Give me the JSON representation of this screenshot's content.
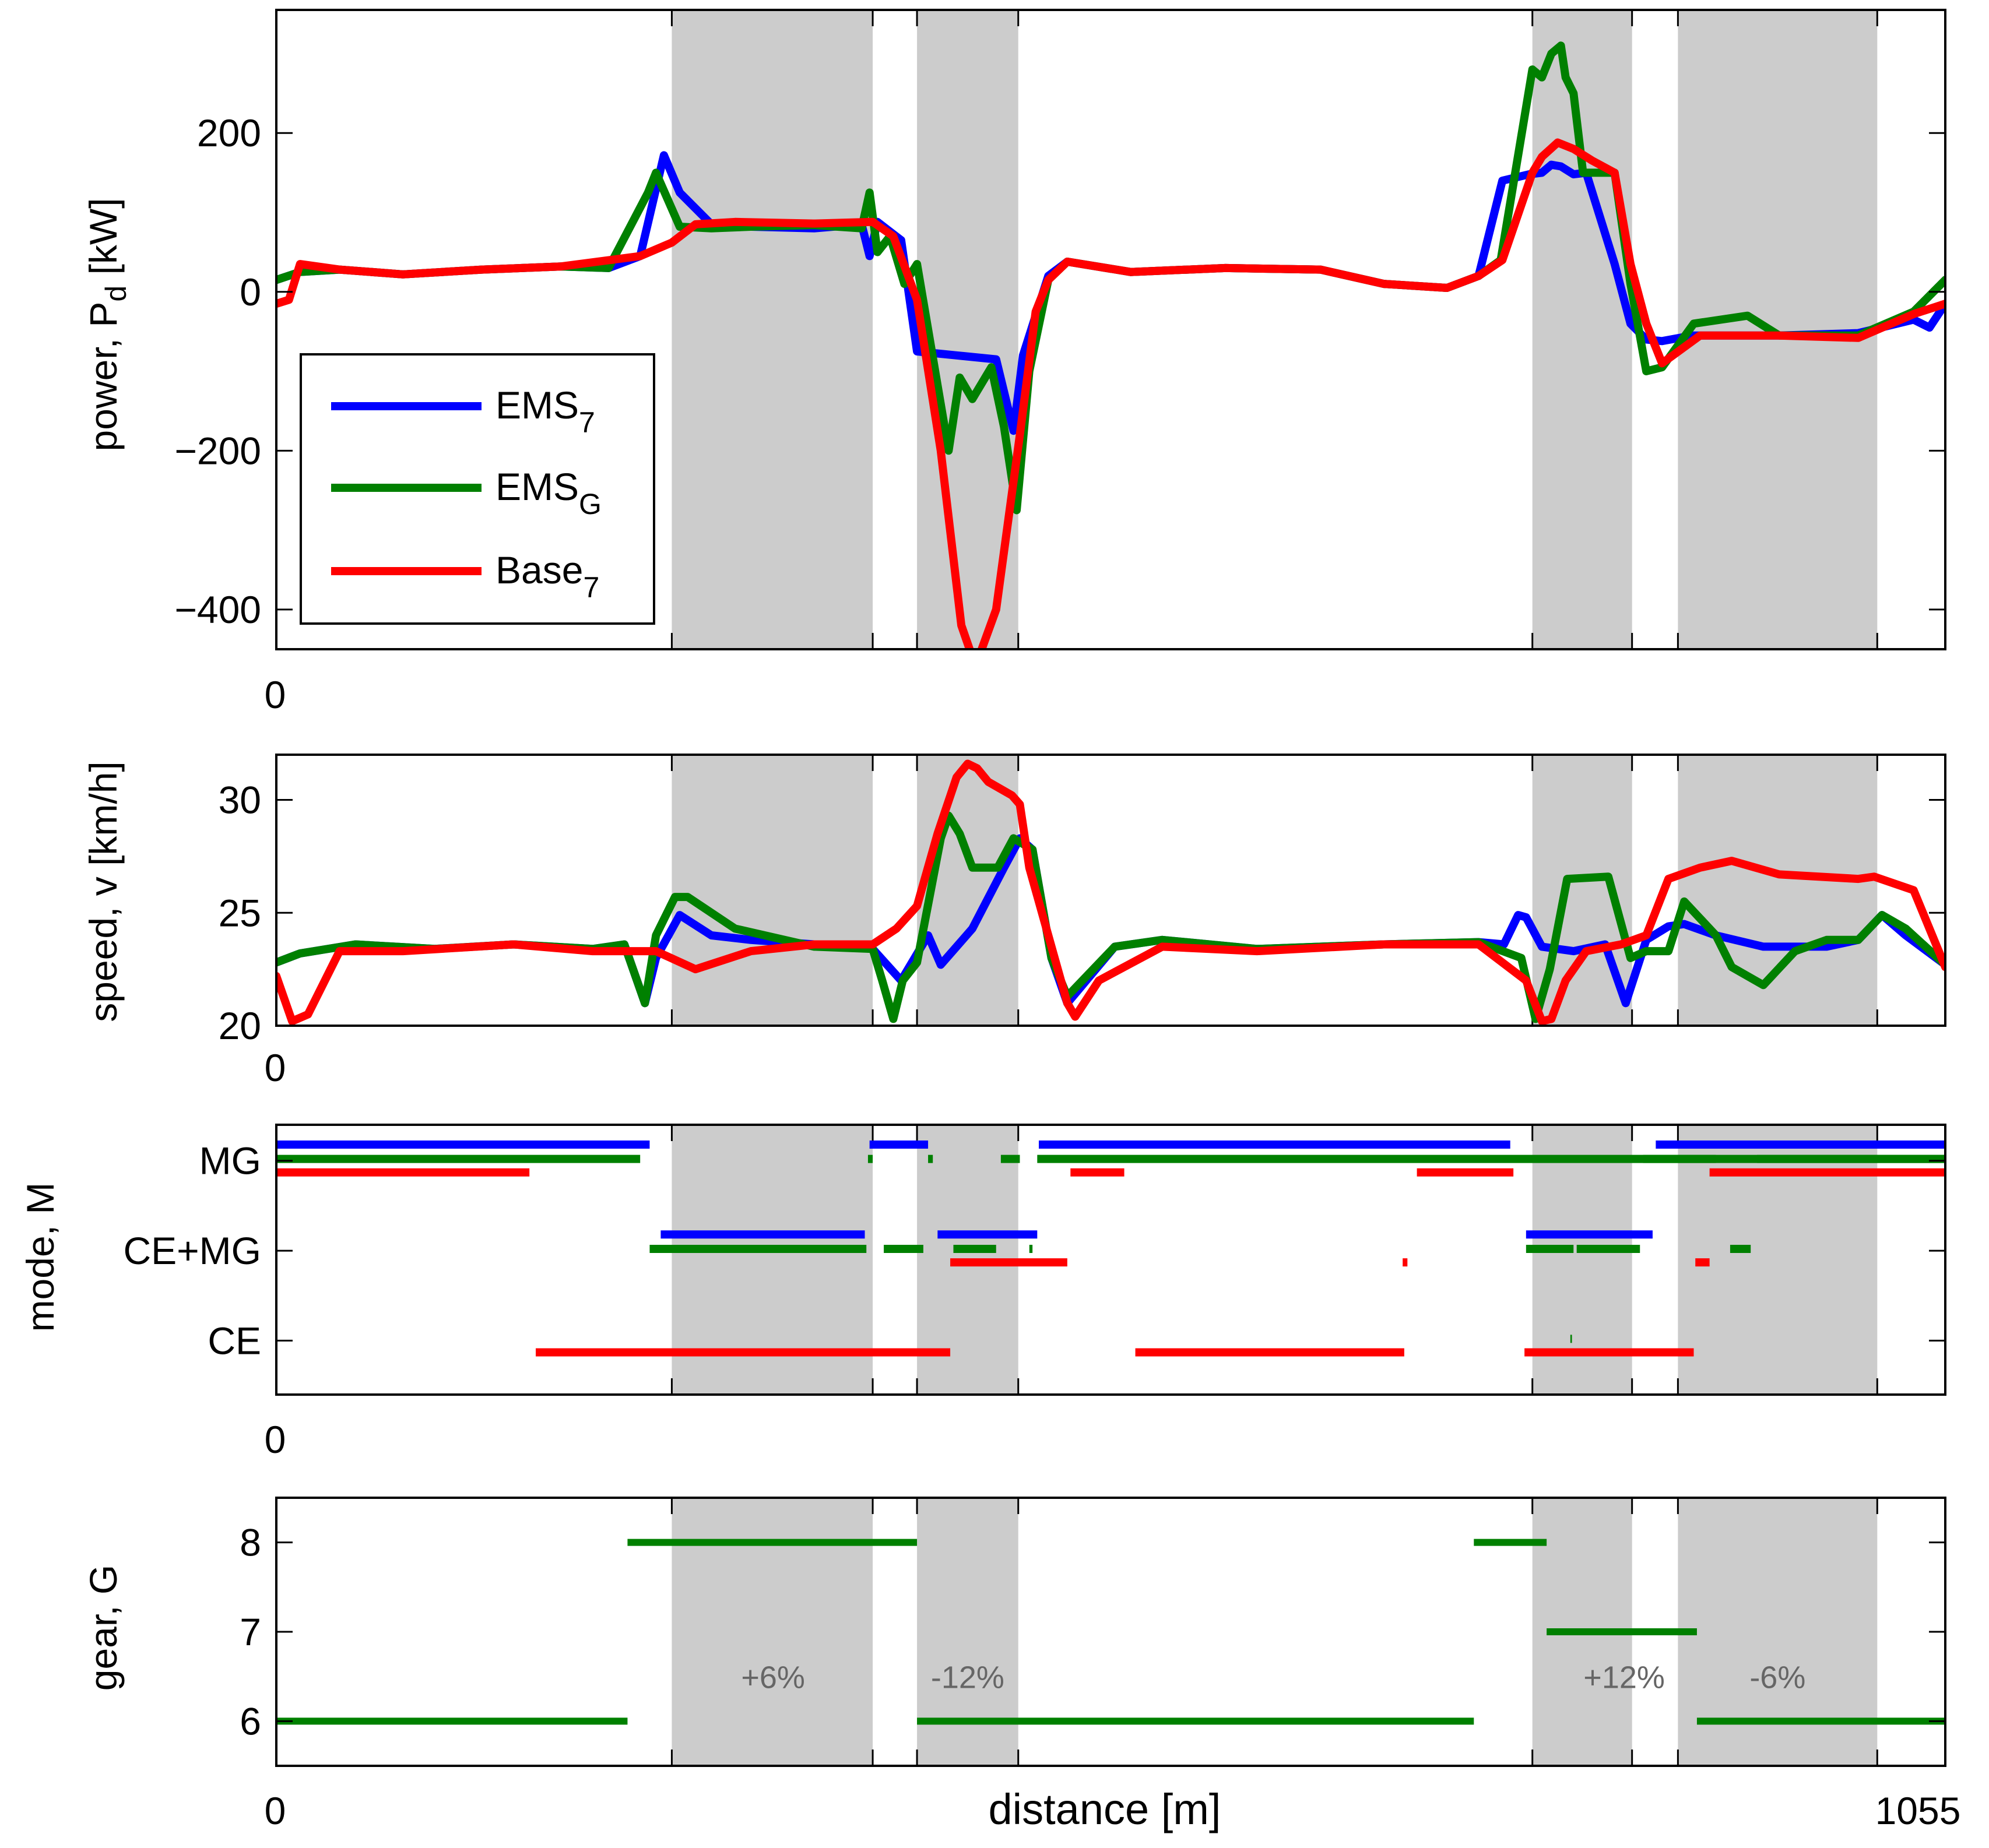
{
  "figure": {
    "xlabel": "distance [m]",
    "x_end_label": "1055"
  },
  "colors": {
    "ems7": "#0000ff",
    "emsg": "#008000",
    "base7": "#ff0000",
    "shade": "#cccccc",
    "axis": "#000000",
    "grade_text": "#666666"
  },
  "chart_data": [
    {
      "type": "line",
      "title": "",
      "ylabel": "power, P",
      "ylabel_sub": "d",
      "ylabel_unit": " [kW]",
      "xlim": [
        0,
        1055
      ],
      "ylim": [
        -450,
        355
      ],
      "yticks": [
        200,
        0,
        -200,
        -400
      ],
      "ytick_labels": [
        "200",
        "0",
        "−200",
        "−400"
      ],
      "x_zero_label": "0",
      "shaded_regions": [
        [
          250,
          377
        ],
        [
          405,
          469
        ],
        [
          794,
          857
        ],
        [
          886,
          1012
        ]
      ],
      "legend": {
        "position": "bottom-left",
        "entries": [
          {
            "base": "EMS",
            "sub": "7",
            "color": "#0000ff"
          },
          {
            "base": "EMS",
            "sub": "G",
            "color": "#008000"
          },
          {
            "base": "Base",
            "sub": "7",
            "color": "#ff0000"
          }
        ]
      },
      "series": [
        {
          "name": "EMS7",
          "color": "#0000ff",
          "x": [
            0,
            15,
            40,
            80,
            130,
            180,
            210,
            230,
            245,
            255,
            275,
            300,
            340,
            370,
            375,
            380,
            395,
            405,
            430,
            455,
            466,
            472,
            488,
            500,
            540,
            600,
            660,
            700,
            740,
            760,
            775,
            792,
            800,
            806,
            812,
            820,
            828,
            846,
            856,
            866,
            876,
            895,
            950,
            1000,
            1035,
            1045,
            1055
          ],
          "y": [
            15,
            25,
            28,
            22,
            28,
            32,
            30,
            45,
            172,
            125,
            85,
            82,
            80,
            85,
            45,
            88,
            65,
            -75,
            -80,
            -85,
            -175,
            -80,
            20,
            38,
            25,
            30,
            28,
            10,
            5,
            20,
            140,
            148,
            150,
            160,
            158,
            148,
            150,
            35,
            -40,
            -60,
            -62,
            -55,
            -55,
            -52,
            -35,
            -45,
            -15
          ]
        },
        {
          "name": "EMSG",
          "color": "#008000",
          "x": [
            0,
            15,
            40,
            80,
            130,
            180,
            210,
            235,
            240,
            255,
            275,
            300,
            340,
            370,
            375,
            380,
            388,
            397,
            405,
            425,
            432,
            440,
            452,
            460,
            468,
            476,
            488,
            500,
            540,
            600,
            660,
            700,
            740,
            760,
            774,
            794,
            800,
            806,
            812,
            815,
            820,
            826,
            846,
            856,
            866,
            876,
            896,
            930,
            950,
            980,
            1000,
            1035,
            1055
          ],
          "y": [
            15,
            25,
            28,
            22,
            28,
            32,
            30,
            125,
            150,
            82,
            80,
            82,
            84,
            80,
            125,
            50,
            70,
            10,
            35,
            -200,
            -108,
            -135,
            -95,
            -170,
            -275,
            -100,
            15,
            38,
            25,
            30,
            28,
            10,
            5,
            20,
            40,
            280,
            270,
            300,
            310,
            270,
            250,
            150,
            150,
            10,
            -100,
            -95,
            -40,
            -30,
            -55,
            -55,
            -55,
            -25,
            15
          ]
        },
        {
          "name": "Base7",
          "color": "#ff0000",
          "x": [
            0,
            8,
            15,
            40,
            80,
            130,
            180,
            230,
            250,
            265,
            290,
            340,
            377,
            390,
            405,
            420,
            433,
            440,
            445,
            455,
            470,
            480,
            488,
            500,
            540,
            600,
            660,
            700,
            740,
            760,
            775,
            794,
            800,
            810,
            820,
            832,
            846,
            856,
            866,
            876,
            900,
            950,
            1000,
            1035,
            1055
          ],
          "y": [
            -15,
            -10,
            35,
            28,
            22,
            28,
            32,
            45,
            62,
            85,
            88,
            86,
            88,
            70,
            -10,
            -200,
            -420,
            -460,
            -455,
            -400,
            -180,
            -25,
            15,
            38,
            25,
            30,
            28,
            10,
            5,
            20,
            40,
            150,
            170,
            188,
            180,
            165,
            150,
            35,
            -40,
            -90,
            -55,
            -55,
            -58,
            -28,
            -15
          ]
        }
      ]
    },
    {
      "type": "line",
      "title": "",
      "ylabel": "speed, v [km/h]",
      "xlim": [
        0,
        1055
      ],
      "ylim": [
        20,
        32
      ],
      "yticks": [
        30,
        25,
        20
      ],
      "ytick_labels": [
        "30",
        "25",
        "20"
      ],
      "x_zero_label": "0",
      "shaded_regions": [
        [
          250,
          377
        ],
        [
          405,
          469
        ],
        [
          794,
          857
        ],
        [
          886,
          1012
        ]
      ],
      "series": [
        {
          "name": "EMS7",
          "color": "#0000ff",
          "x": [
            0,
            15,
            50,
            100,
            150,
            200,
            220,
            233,
            240,
            255,
            275,
            300,
            340,
            377,
            395,
            412,
            420,
            440,
            460,
            470,
            478,
            490,
            500,
            530,
            560,
            620,
            700,
            760,
            776,
            785,
            790,
            800,
            820,
            840,
            853,
            866,
            880,
            890,
            910,
            940,
            980,
            1000,
            1015,
            1030,
            1055
          ],
          "y": [
            22.8,
            23.2,
            23.6,
            23.4,
            23.6,
            23.4,
            23.6,
            21.0,
            23.0,
            24.9,
            24.0,
            23.8,
            23.6,
            23.4,
            22.0,
            24.0,
            22.7,
            24.3,
            27.0,
            28.3,
            27.8,
            23.0,
            21.0,
            23.5,
            23.8,
            23.4,
            23.6,
            23.7,
            23.6,
            24.9,
            24.8,
            23.5,
            23.3,
            23.6,
            21.0,
            23.8,
            24.4,
            24.5,
            24.0,
            23.5,
            23.5,
            23.8,
            24.9,
            24.0,
            22.7
          ]
        },
        {
          "name": "EMSG",
          "color": "#008000",
          "x": [
            0,
            15,
            50,
            100,
            150,
            200,
            220,
            233,
            240,
            252,
            260,
            290,
            340,
            377,
            383,
            390,
            396,
            405,
            420,
            425,
            432,
            440,
            448,
            456,
            466,
            478,
            490,
            500,
            530,
            560,
            620,
            700,
            760,
            787,
            796,
            805,
            816,
            842,
            856,
            866,
            880,
            890,
            910,
            920,
            940,
            960,
            980,
            1000,
            1015,
            1030,
            1055
          ],
          "y": [
            22.8,
            23.2,
            23.6,
            23.4,
            23.6,
            23.4,
            23.6,
            21.0,
            24.0,
            25.7,
            25.7,
            24.3,
            23.5,
            23.4,
            22.0,
            20.3,
            22.0,
            22.8,
            28.3,
            29.3,
            28.5,
            27.0,
            27.0,
            27.0,
            28.3,
            27.8,
            23.0,
            21.3,
            23.5,
            23.8,
            23.4,
            23.6,
            23.7,
            23.0,
            20.3,
            22.5,
            26.5,
            26.6,
            23.0,
            23.3,
            23.3,
            25.5,
            24.0,
            22.6,
            21.8,
            23.3,
            23.8,
            23.8,
            24.9,
            24.3,
            22.7
          ]
        },
        {
          "name": "Base7",
          "color": "#ff0000",
          "x": [
            0,
            10,
            20,
            40,
            80,
            150,
            200,
            240,
            265,
            300,
            340,
            377,
            392,
            405,
            418,
            430,
            437,
            443,
            450,
            465,
            470,
            476,
            500,
            505,
            520,
            560,
            620,
            700,
            760,
            790,
            800,
            806,
            815,
            828,
            850,
            866,
            880,
            900,
            920,
            930,
            950,
            1000,
            1010,
            1035,
            1055
          ],
          "y": [
            22.2,
            20.2,
            20.5,
            23.3,
            23.3,
            23.6,
            23.3,
            23.3,
            22.5,
            23.3,
            23.6,
            23.6,
            24.3,
            25.3,
            28.5,
            31.0,
            31.6,
            31.4,
            30.8,
            30.2,
            29.8,
            27.0,
            21.0,
            20.4,
            22.0,
            23.5,
            23.3,
            23.6,
            23.6,
            22.0,
            20.2,
            20.3,
            22.0,
            23.3,
            23.6,
            24.0,
            26.5,
            27.0,
            27.3,
            27.1,
            26.7,
            26.5,
            26.6,
            26.0,
            22.6
          ]
        }
      ]
    },
    {
      "type": "line",
      "title": "",
      "ylabel": "mode, M",
      "xlim": [
        0,
        1055
      ],
      "ylim": [
        0.4,
        3.4
      ],
      "yticks": [
        3,
        2,
        1
      ],
      "ytick_labels": [
        "MG",
        "CE+MG",
        "CE"
      ],
      "x_zero_label": "0",
      "shaded_regions": [
        [
          250,
          377
        ],
        [
          405,
          469
        ],
        [
          794,
          857
        ],
        [
          886,
          1012
        ]
      ],
      "series": [
        {
          "name": "EMS7",
          "color": "#0000ff",
          "y_offset": 0.18,
          "segments": [
            [
              0,
              236,
              3
            ],
            [
              375,
              412,
              3
            ],
            [
              482,
              780,
              3
            ],
            [
              872,
              1055,
              3
            ],
            [
              243,
              372,
              2
            ],
            [
              418,
              481,
              2
            ],
            [
              790,
              870,
              2
            ]
          ]
        },
        {
          "name": "EMSG",
          "color": "#008000",
          "y_offset": 0.02,
          "segments": [
            [
              0,
              230,
              3
            ],
            [
              374,
              377,
              3
            ],
            [
              412,
              415,
              3
            ],
            [
              458,
              470,
              3
            ],
            [
              481,
              1055,
              3
            ],
            [
              864,
              910,
              3
            ],
            [
              936,
              1055,
              3
            ],
            [
              236,
              373,
              2
            ],
            [
              384,
              409,
              2
            ],
            [
              428,
              455,
              2
            ],
            [
              476,
              478,
              2
            ],
            [
              790,
              820,
              2
            ],
            [
              822,
              862,
              2
            ],
            [
              919,
              932,
              2
            ],
            [
              818,
              819,
              1
            ]
          ]
        },
        {
          "name": "Base7",
          "color": "#ff0000",
          "y_offset": -0.13,
          "segments": [
            [
              0,
              160,
              3
            ],
            [
              502,
              536,
              3
            ],
            [
              721,
              782,
              3
            ],
            [
              906,
              1055,
              3
            ],
            [
              426,
              500,
              2
            ],
            [
              712,
              715,
              2
            ],
            [
              897,
              906,
              2
            ],
            [
              164,
              426,
              1
            ],
            [
              543,
              713,
              1
            ],
            [
              789,
              896,
              1
            ]
          ]
        }
      ]
    },
    {
      "type": "line",
      "title": "",
      "ylabel": "gear, G",
      "xlim": [
        0,
        1055
      ],
      "ylim": [
        5.5,
        8.5
      ],
      "yticks": [
        8,
        7,
        6
      ],
      "ytick_labels": [
        "8",
        "7",
        "6"
      ],
      "x_zero_label": "0",
      "shaded_regions": [
        [
          250,
          377
        ],
        [
          405,
          469
        ],
        [
          794,
          857
        ],
        [
          886,
          1012
        ]
      ],
      "annotations": [
        {
          "text": "+6%",
          "x": 314,
          "y": 6.5
        },
        {
          "text": "-12%",
          "x": 437,
          "y": 6.5
        },
        {
          "text": "+12%",
          "x": 852,
          "y": 6.5
        },
        {
          "text": "-6%",
          "x": 949,
          "y": 6.5
        }
      ],
      "series": [
        {
          "name": "EMSG",
          "color": "#008000",
          "segments": [
            [
              0,
              222,
              6
            ],
            [
              222,
              405,
              8
            ],
            [
              405,
              757,
              6
            ],
            [
              757,
              803,
              8
            ],
            [
              803,
              898,
              7
            ],
            [
              898,
              1055,
              6
            ]
          ]
        }
      ]
    }
  ]
}
